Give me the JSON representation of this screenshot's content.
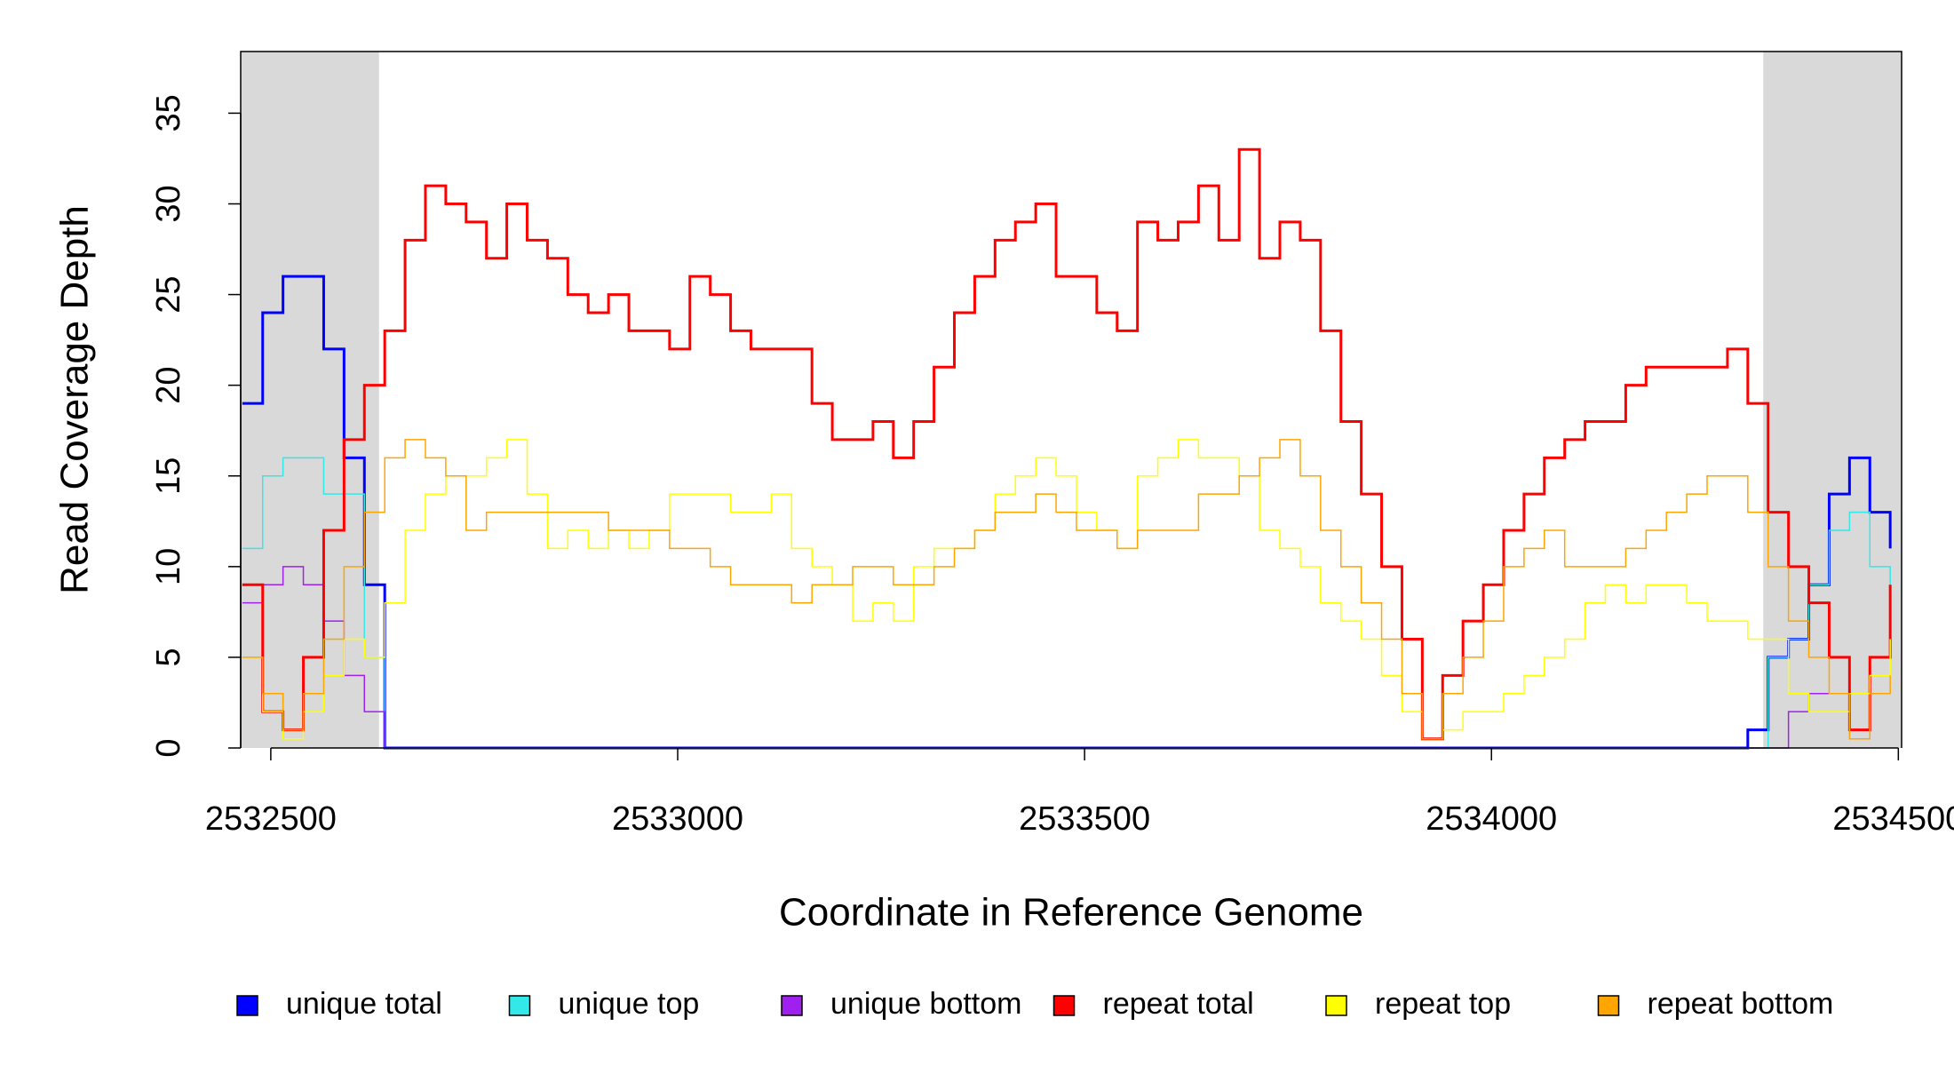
{
  "chart_data": {
    "type": "step",
    "x_label": "Coordinate in Reference Genome",
    "y_label": "Read Coverage Depth",
    "xlim": [
      2532463,
      2534504
    ],
    "ylim": [
      0,
      38.4
    ],
    "xticks": [
      2532500,
      2533000,
      2533500,
      2534000,
      2534500
    ],
    "yticks": [
      0,
      5,
      10,
      15,
      20,
      25,
      30,
      35
    ],
    "shaded_regions": [
      [
        2532463,
        2532633
      ],
      [
        2534334,
        2534504
      ]
    ],
    "shade_color": "#d9d9d9",
    "x": [
      2532465,
      2532490,
      2532515,
      2532540,
      2532565,
      2532590,
      2532615,
      2532640,
      2532665,
      2532690,
      2532715,
      2532740,
      2532765,
      2532790,
      2532815,
      2532840,
      2532865,
      2532890,
      2532915,
      2532940,
      2532965,
      2532990,
      2533015,
      2533040,
      2533065,
      2533090,
      2533115,
      2533140,
      2533165,
      2533190,
      2533215,
      2533240,
      2533265,
      2533290,
      2533315,
      2533340,
      2533365,
      2533390,
      2533415,
      2533440,
      2533465,
      2533490,
      2533515,
      2533540,
      2533565,
      2533590,
      2533615,
      2533640,
      2533665,
      2533690,
      2533715,
      2533740,
      2533765,
      2533790,
      2533815,
      2533840,
      2533865,
      2533890,
      2533915,
      2533940,
      2533965,
      2533990,
      2534015,
      2534040,
      2534065,
      2534090,
      2534115,
      2534140,
      2534165,
      2534190,
      2534215,
      2534240,
      2534265,
      2534290,
      2534315,
      2534340,
      2534365,
      2534390,
      2534415,
      2534440,
      2534465,
      2534490
    ],
    "series": [
      {
        "name": "unique total",
        "color": "#0000ff",
        "width": 3,
        "values": [
          19,
          24,
          26,
          26,
          22,
          16,
          9,
          0,
          0,
          0,
          0,
          0,
          0,
          0,
          0,
          0,
          0,
          0,
          0,
          0,
          0,
          0,
          0,
          0,
          0,
          0,
          0,
          0,
          0,
          0,
          0,
          0,
          0,
          0,
          0,
          0,
          0,
          0,
          0,
          0,
          0,
          0,
          0,
          0,
          0,
          0,
          0,
          0,
          0,
          0,
          0,
          0,
          0,
          0,
          0,
          0,
          0,
          0,
          0,
          0,
          0,
          0,
          0,
          0,
          0,
          0,
          0,
          0,
          0,
          0,
          0,
          0,
          0,
          0,
          1,
          5,
          6,
          9,
          14,
          16,
          13,
          11
        ]
      },
      {
        "name": "unique top",
        "color": "#33e8e8",
        "width": 1.5,
        "values": [
          11,
          15,
          16,
          16,
          14,
          14,
          5,
          0,
          0,
          0,
          0,
          0,
          0,
          0,
          0,
          0,
          0,
          0,
          0,
          0,
          0,
          0,
          0,
          0,
          0,
          0,
          0,
          0,
          0,
          0,
          0,
          0,
          0,
          0,
          0,
          0,
          0,
          0,
          0,
          0,
          0,
          0,
          0,
          0,
          0,
          0,
          0,
          0,
          0,
          0,
          0,
          0,
          0,
          0,
          0,
          0,
          0,
          0,
          0,
          0,
          0,
          0,
          0,
          0,
          0,
          0,
          0,
          0,
          0,
          0,
          0,
          0,
          0,
          0,
          0,
          5,
          6,
          9,
          12,
          13,
          10,
          8
        ]
      },
      {
        "name": "unique bottom",
        "color": "#a020f0",
        "width": 1.5,
        "values": [
          8,
          9,
          10,
          9,
          7,
          4,
          2,
          0,
          0,
          0,
          0,
          0,
          0,
          0,
          0,
          0,
          0,
          0,
          0,
          0,
          0,
          0,
          0,
          0,
          0,
          0,
          0,
          0,
          0,
          0,
          0,
          0,
          0,
          0,
          0,
          0,
          0,
          0,
          0,
          0,
          0,
          0,
          0,
          0,
          0,
          0,
          0,
          0,
          0,
          0,
          0,
          0,
          0,
          0,
          0,
          0,
          0,
          0,
          0,
          0,
          0,
          0,
          0,
          0,
          0,
          0,
          0,
          0,
          0,
          0,
          0,
          0,
          0,
          0,
          0,
          0,
          2,
          3,
          3,
          3,
          3,
          3
        ]
      },
      {
        "name": "repeat total",
        "color": "#ff0000",
        "width": 3,
        "values": [
          9,
          2,
          1,
          5,
          12,
          17,
          20,
          23,
          28,
          31,
          30,
          29,
          27,
          30,
          28,
          27,
          25,
          24,
          25,
          23,
          23,
          22,
          26,
          25,
          23,
          22,
          22,
          22,
          19,
          17,
          17,
          18,
          16,
          18,
          21,
          24,
          26,
          28,
          29,
          30,
          26,
          26,
          24,
          23,
          29,
          28,
          29,
          31,
          28,
          33,
          27,
          29,
          28,
          23,
          18,
          14,
          10,
          6,
          0.5,
          4,
          7,
          9,
          12,
          14,
          16,
          17,
          18,
          18,
          20,
          21,
          21,
          21,
          21,
          22,
          19,
          13,
          10,
          8,
          5,
          1,
          5,
          9
        ]
      },
      {
        "name": "repeat top",
        "color": "#ffff00",
        "width": 1.5,
        "values": [
          5,
          2,
          0.5,
          2,
          4,
          6,
          5,
          8,
          12,
          14,
          15,
          15,
          16,
          17,
          14,
          11,
          12,
          11,
          12,
          11,
          12,
          14,
          14,
          14,
          13,
          13,
          14,
          11,
          10,
          9,
          7,
          8,
          7,
          10,
          11,
          11,
          12,
          14,
          15,
          16,
          15,
          13,
          12,
          11,
          15,
          16,
          17,
          16,
          16,
          15,
          12,
          11,
          10,
          8,
          7,
          6,
          4,
          2,
          0.5,
          1,
          2,
          2,
          3,
          4,
          5,
          6,
          8,
          9,
          8,
          9,
          9,
          8,
          7,
          7,
          6,
          6,
          3,
          2,
          2,
          3,
          4,
          6
        ]
      },
      {
        "name": "repeat bottom",
        "color": "#ffa500",
        "width": 1.5,
        "values": [
          5,
          3,
          1,
          3,
          6,
          10,
          13,
          16,
          17,
          16,
          15,
          12,
          13,
          13,
          13,
          13,
          13,
          13,
          12,
          12,
          12,
          11,
          11,
          10,
          9,
          9,
          9,
          8,
          9,
          9,
          10,
          10,
          9,
          9,
          10,
          11,
          12,
          13,
          13,
          14,
          13,
          12,
          12,
          11,
          12,
          12,
          12,
          14,
          14,
          15,
          16,
          17,
          15,
          12,
          10,
          8,
          6,
          3,
          0.5,
          3,
          5,
          7,
          10,
          11,
          12,
          10,
          10,
          10,
          11,
          12,
          13,
          14,
          15,
          15,
          13,
          10,
          7,
          5,
          3,
          0.5,
          3,
          4
        ]
      }
    ]
  }
}
